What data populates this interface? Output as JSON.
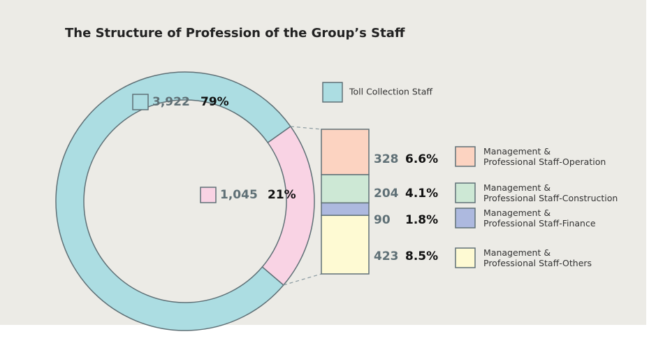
{
  "chart_data": {
    "type": "donut",
    "title": "The Structure of Profession of the Group’s Staff",
    "categories": [
      "Toll Collection Staff",
      null
    ],
    "values": [
      3922,
      1045
    ],
    "value_labels": [
      "3,922",
      "1,045"
    ],
    "percents": [
      79,
      21
    ],
    "percent_labels": [
      "79%",
      "21%"
    ],
    "colors": [
      "#acdde2",
      "#f9d3e4"
    ],
    "breakdown": {
      "type": "stacked-bar",
      "categories": [
        "Management &\nProfessional Staff-Operation",
        "Management &\nProfessional Staff-Construction",
        "Management &\nProfessional Staff-Finance",
        "Management &\nProfessional Staff-Others"
      ],
      "values": [
        328,
        204,
        90,
        423
      ],
      "percents": [
        6.6,
        4.1,
        1.8,
        8.5
      ],
      "percent_labels": [
        "6.6%",
        "4.1%",
        "1.8%",
        "8.5%"
      ],
      "colors": [
        "#fcd3c1",
        "#cde8d5",
        "#adb9df",
        "#fefad3"
      ]
    }
  }
}
